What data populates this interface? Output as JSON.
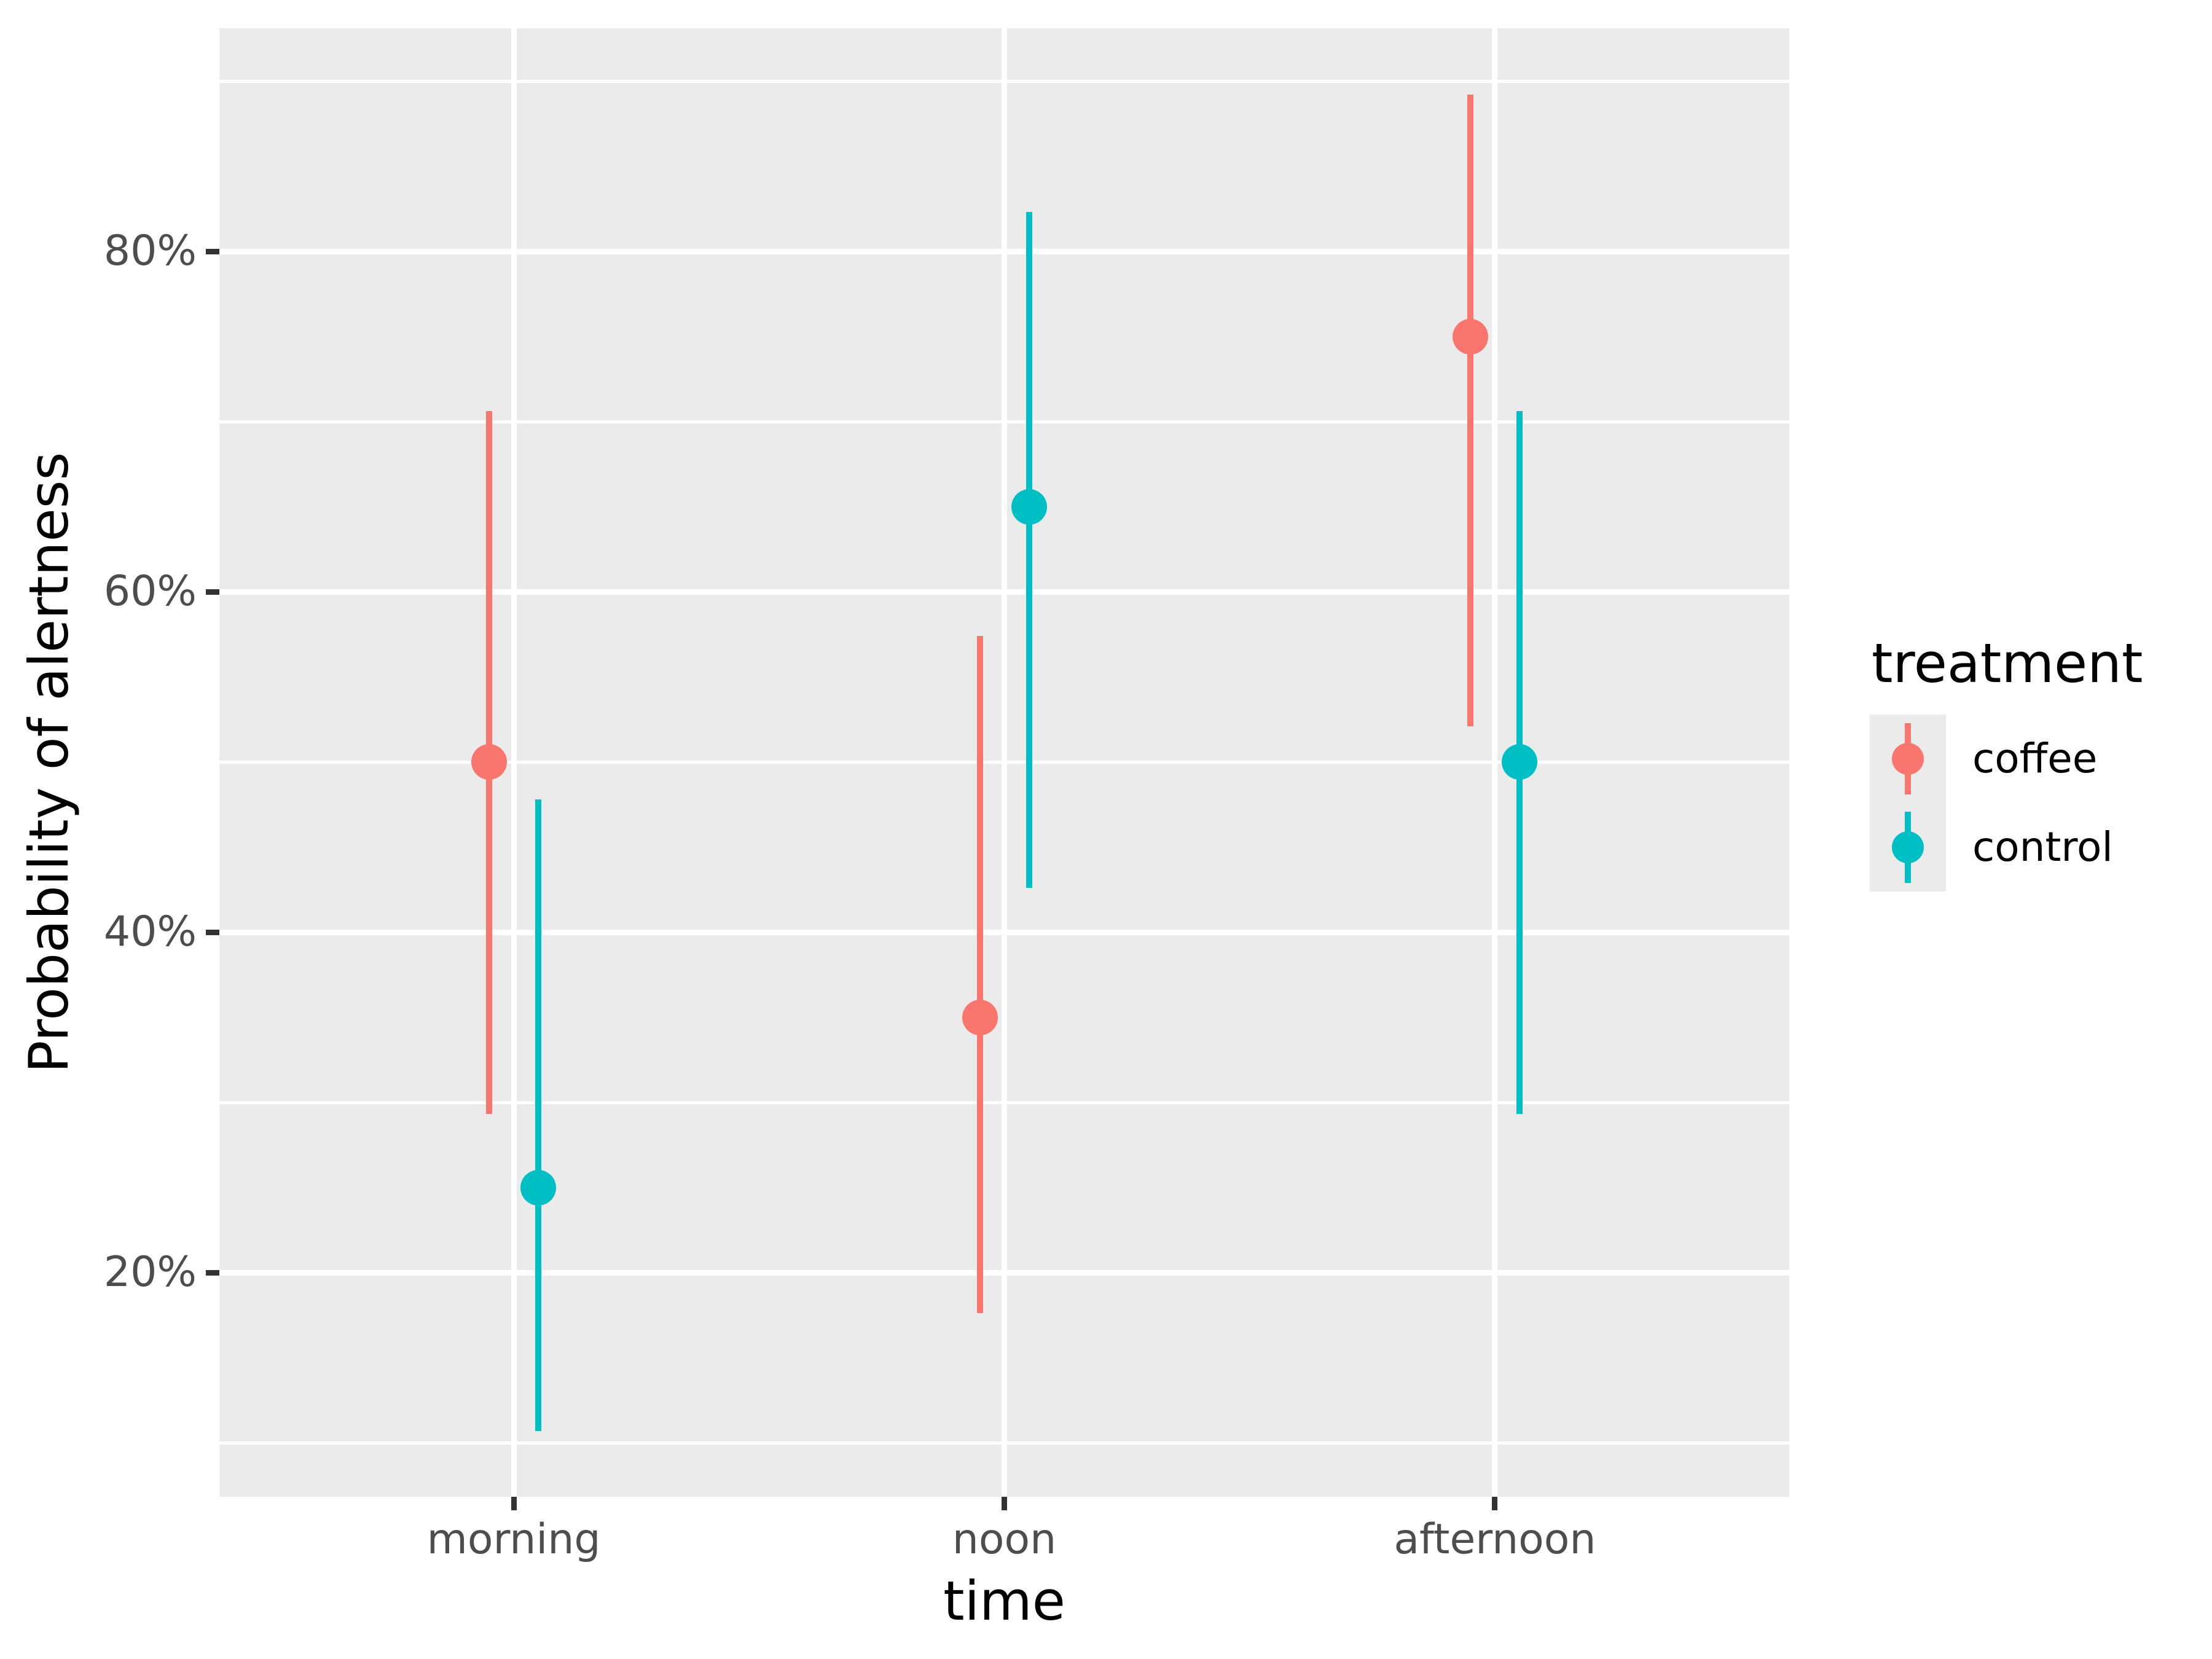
{
  "chart_data": {
    "type": "pointrange",
    "title": "",
    "xlabel": "time",
    "ylabel": "Probability of alertness",
    "categories": [
      "morning",
      "noon",
      "afternoon"
    ],
    "series": [
      {
        "name": "coffee",
        "color": "#F8766D",
        "points": [
          {
            "category": "morning",
            "y": 50,
            "ymin": 29.3,
            "ymax": 70.6
          },
          {
            "category": "noon",
            "y": 35,
            "ymin": 17.6,
            "ymax": 57.4
          },
          {
            "category": "afternoon",
            "y": 75,
            "ymin": 52.1,
            "ymax": 89.2
          }
        ]
      },
      {
        "name": "control",
        "color": "#00BFC4",
        "points": [
          {
            "category": "morning",
            "y": 25,
            "ymin": 10.7,
            "ymax": 47.8
          },
          {
            "category": "noon",
            "y": 65,
            "ymin": 42.6,
            "ymax": 82.3
          },
          {
            "category": "afternoon",
            "y": 50,
            "ymin": 29.3,
            "ymax": 70.6
          }
        ]
      }
    ],
    "y_ticks": [
      {
        "label": "20%",
        "value": 20
      },
      {
        "label": "40%",
        "value": 40
      },
      {
        "label": "60%",
        "value": 60
      },
      {
        "label": "80%",
        "value": 80
      }
    ],
    "y_minor_values": [
      10,
      30,
      50,
      70,
      90
    ],
    "ylim_percent": [
      6.8,
      93.2
    ],
    "grid": true,
    "legend": {
      "title": "treatment",
      "position": "right",
      "entries": [
        "coffee",
        "control"
      ]
    },
    "colors": {
      "panel_background": "#EBEBEB",
      "grid": "#FFFFFF",
      "tick_mark": "#333333",
      "tick_label": "#4D4D4D",
      "axis_title": "#000000",
      "legend_key_background": "#EBEBEB"
    }
  }
}
